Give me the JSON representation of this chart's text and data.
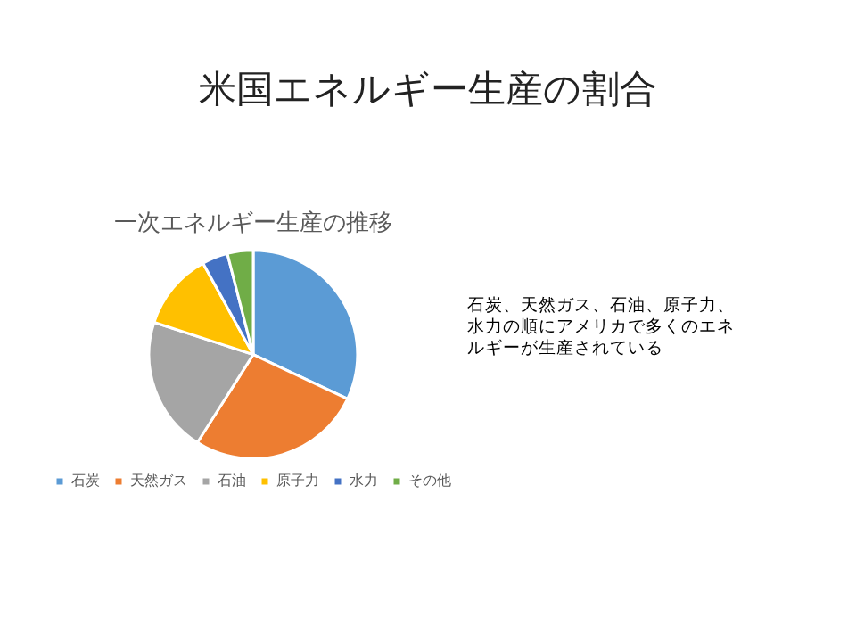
{
  "chart_data": {
    "type": "pie",
    "title": "米国エネルギー生産の割合",
    "subtitle": "一次エネルギー生産の推移",
    "categories": [
      "石炭",
      "天然ガス",
      "石油",
      "原子力",
      "水力",
      "その他"
    ],
    "values": [
      32,
      27,
      21,
      12,
      4,
      4
    ],
    "colors": [
      "#5b9bd5",
      "#ed7d31",
      "#a5a5a5",
      "#ffc000",
      "#4472c4",
      "#70ad47"
    ],
    "legend": "bottom",
    "annotations": [
      "石炭、天然ガス、石油、原子力、水力の順にアメリカで多くのエネルギーが生産されている"
    ]
  }
}
